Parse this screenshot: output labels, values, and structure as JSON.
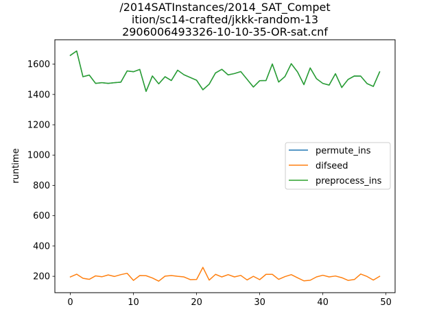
{
  "chart_data": {
    "type": "line",
    "title_lines": [
      "/2014SATInstances/2014_SAT_Compet",
      "ition/sc14-crafted/jkkk-random-13",
      "2906006493326-10-10-35-OR-sat.cnf"
    ],
    "xlabel": "",
    "ylabel": "runtime",
    "xlim": [
      -2.45,
      51.45
    ],
    "ylim": [
      92,
      1761
    ],
    "xticks": [
      0,
      10,
      20,
      30,
      40,
      50
    ],
    "yticks": [
      200,
      400,
      600,
      800,
      1000,
      1200,
      1400,
      1600
    ],
    "grid": false,
    "legend_position": "center-right",
    "x": [
      0,
      1,
      2,
      3,
      4,
      5,
      6,
      7,
      8,
      9,
      10,
      11,
      12,
      13,
      14,
      15,
      16,
      17,
      18,
      19,
      20,
      21,
      22,
      23,
      24,
      25,
      26,
      27,
      28,
      29,
      30,
      31,
      32,
      33,
      34,
      35,
      36,
      37,
      38,
      39,
      40,
      41,
      42,
      43,
      44,
      45,
      46,
      47,
      48,
      49
    ],
    "series": [
      {
        "name": "permute_ins",
        "color": "#1f77b4",
        "values": [
          1658,
          1687,
          1517,
          1528,
          1473,
          1478,
          1473,
          1478,
          1481,
          1555,
          1550,
          1565,
          1420,
          1522,
          1470,
          1517,
          1492,
          1560,
          1530,
          1512,
          1494,
          1431,
          1468,
          1542,
          1566,
          1529,
          1538,
          1551,
          1500,
          1449,
          1491,
          1492,
          1601,
          1482,
          1518,
          1603,
          1548,
          1465,
          1575,
          1504,
          1473,
          1462,
          1537,
          1446,
          1499,
          1522,
          1521,
          1472,
          1453,
          1549
        ]
      },
      {
        "name": "difseed",
        "color": "#ff7f0e",
        "values": [
          196,
          214,
          187,
          180,
          203,
          197,
          209,
          199,
          211,
          220,
          173,
          205,
          204,
          189,
          168,
          201,
          205,
          200,
          196,
          178,
          179,
          259,
          175,
          213,
          196,
          211,
          196,
          206,
          176,
          200,
          178,
          213,
          213,
          180,
          198,
          211,
          190,
          170,
          174,
          196,
          207,
          196,
          202,
          191,
          173,
          179,
          215,
          199,
          175,
          200
        ]
      },
      {
        "name": "preprocess_ins",
        "color": "#2ca02c",
        "values": [
          1658,
          1687,
          1517,
          1528,
          1473,
          1478,
          1473,
          1478,
          1481,
          1555,
          1550,
          1565,
          1420,
          1522,
          1470,
          1517,
          1492,
          1560,
          1530,
          1512,
          1494,
          1431,
          1468,
          1542,
          1566,
          1529,
          1538,
          1551,
          1500,
          1449,
          1491,
          1492,
          1601,
          1482,
          1518,
          1603,
          1548,
          1465,
          1575,
          1504,
          1473,
          1462,
          1537,
          1446,
          1499,
          1522,
          1521,
          1472,
          1453,
          1549
        ]
      }
    ]
  }
}
